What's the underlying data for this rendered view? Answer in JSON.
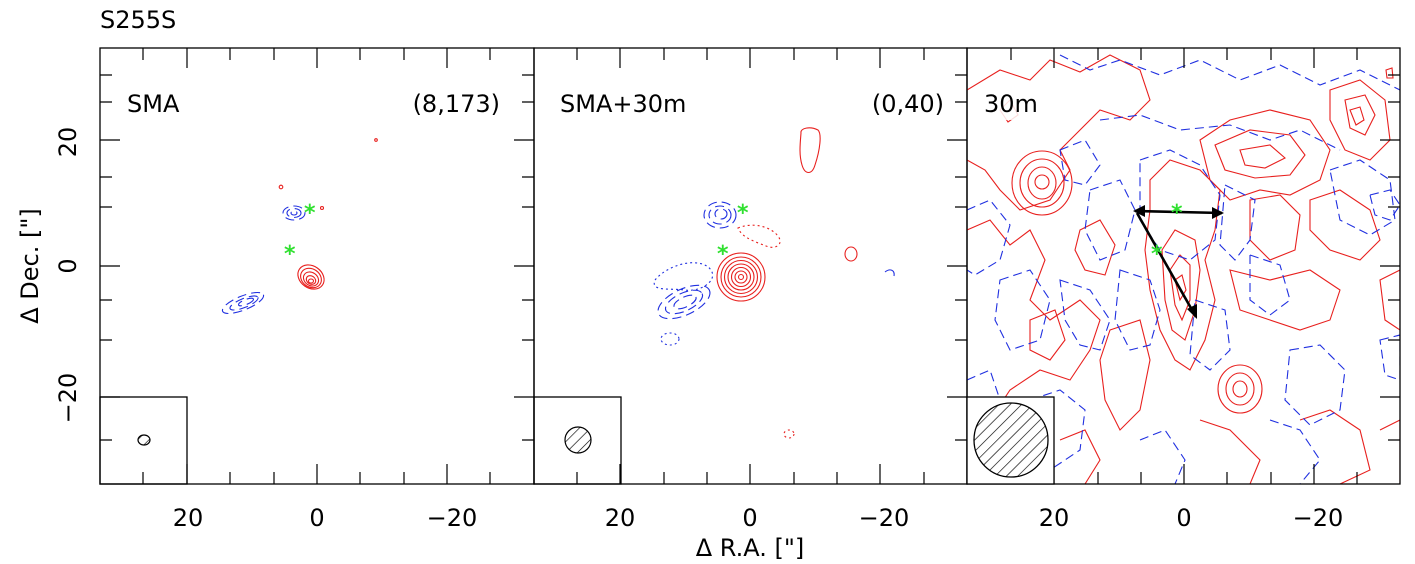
{
  "figure": {
    "title": "S255S",
    "xlabel": "Δ R.A. [\"]",
    "ylabel": "Δ Dec. [\"]",
    "x_ticks": [
      "20",
      "0",
      "−20"
    ],
    "y_ticks": [
      "20",
      "0",
      "−20"
    ],
    "panels": [
      {
        "label": "SMA",
        "annotation": "(8,173)"
      },
      {
        "label": "SMA+30m",
        "annotation": "(0,40)"
      },
      {
        "label": "30m",
        "annotation": ""
      }
    ],
    "colors": {
      "redshifted": "#e8201e",
      "blueshifted": "#2030e0",
      "star": "#30e030",
      "arrow": "#000000"
    },
    "marker_icon": "star-icon"
  }
}
